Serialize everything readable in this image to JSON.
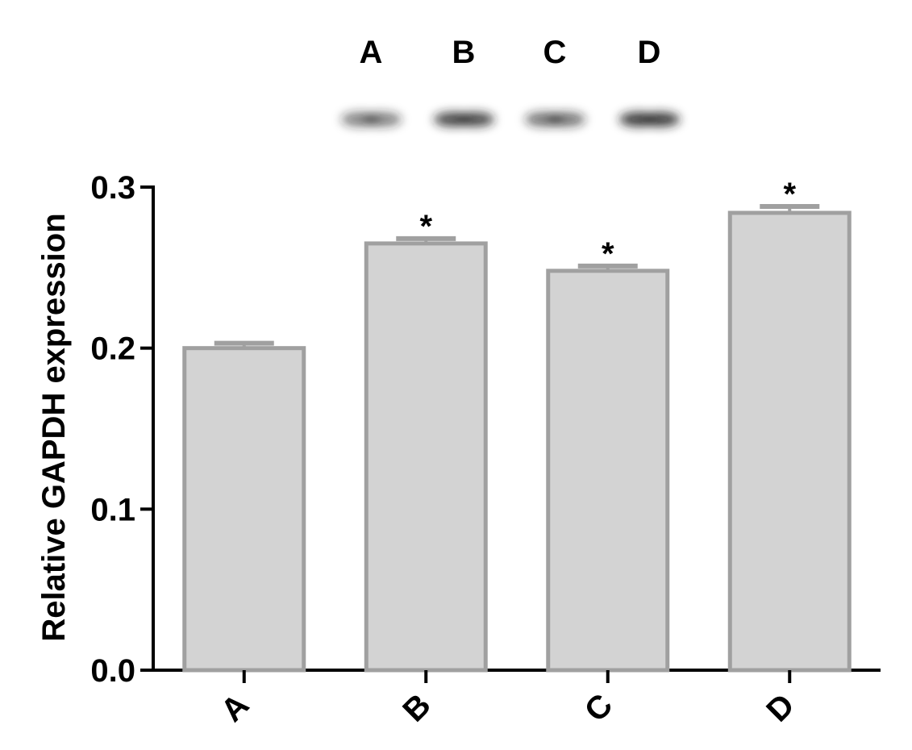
{
  "blot": {
    "lane_labels": [
      "A",
      "B",
      "C",
      "D"
    ],
    "band_intensity": [
      0.55,
      0.8,
      0.6,
      0.85
    ]
  },
  "chart_data": {
    "type": "bar",
    "title": "",
    "xlabel": "",
    "ylabel": "Relative GAPDH expression",
    "categories": [
      "A",
      "B",
      "C",
      "D"
    ],
    "values": [
      0.2,
      0.265,
      0.248,
      0.284
    ],
    "error": [
      0.003,
      0.003,
      0.003,
      0.004
    ],
    "significance": [
      "",
      "*",
      "*",
      "*"
    ],
    "ylim": [
      0,
      0.3
    ],
    "yticks": [
      "0.0",
      "0.1",
      "0.2",
      "0.3"
    ],
    "grid": false,
    "bar_fill": "#d3d3d3",
    "bar_stroke": "#a0a0a0"
  }
}
